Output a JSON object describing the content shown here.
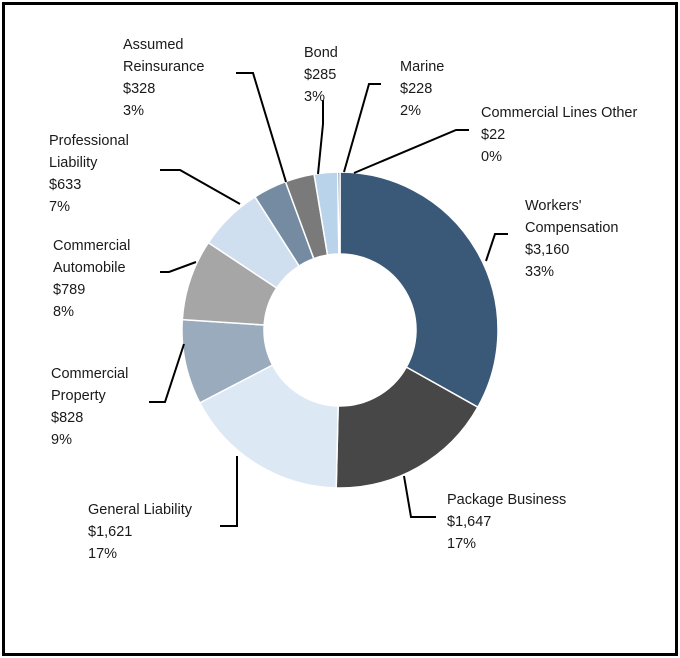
{
  "chart_data": {
    "type": "pie",
    "title": "",
    "series": [
      {
        "values": [
          3160,
          1647,
          1621,
          828,
          789,
          633,
          328,
          285,
          228,
          22
        ],
        "categories": [
          "Workers' Compensation",
          "Package Business",
          "General Liability",
          "Commercial Property",
          "Commercial Automobile",
          "Professional Liability",
          "Assumed Reinsurance",
          "Bond",
          "Marine",
          "Commercial Lines Other"
        ]
      }
    ],
    "slices": [
      {
        "label_lines": [
          "Workers'",
          "Compensation"
        ],
        "value_text": "$3,160",
        "pct_text": "33%",
        "value": 3160,
        "color": "#3a5878"
      },
      {
        "label_lines": [
          "Package Business"
        ],
        "value_text": "$1,647",
        "pct_text": "17%",
        "value": 1647,
        "color": "#474747"
      },
      {
        "label_lines": [
          "General Liability"
        ],
        "value_text": "$1,621",
        "pct_text": "17%",
        "value": 1621,
        "color": "#dce8f4"
      },
      {
        "label_lines": [
          "Commercial",
          "Property"
        ],
        "value_text": "$828",
        "pct_text": "9%",
        "value": 828,
        "color": "#9aabbd"
      },
      {
        "label_lines": [
          "Commercial",
          "Automobile"
        ],
        "value_text": "$789",
        "pct_text": "8%",
        "value": 789,
        "color": "#a6a6a6"
      },
      {
        "label_lines": [
          "Professional",
          "Liability"
        ],
        "value_text": "$633",
        "pct_text": "7%",
        "value": 633,
        "color": "#cfdff0"
      },
      {
        "label_lines": [
          "Assumed",
          "Reinsurance"
        ],
        "value_text": "$328",
        "pct_text": "3%",
        "value": 328,
        "color": "#748ba2"
      },
      {
        "label_lines": [
          "Bond"
        ],
        "value_text": "$285",
        "pct_text": "3%",
        "value": 285,
        "color": "#7a7a7a"
      },
      {
        "label_lines": [
          "Marine"
        ],
        "value_text": "$228",
        "pct_text": "2%",
        "value": 228,
        "color": "#b9d3ea"
      },
      {
        "label_lines": [
          "Commercial Lines Other"
        ],
        "value_text": "$22",
        "pct_text": "0%",
        "value": 22,
        "color": "#5a7896"
      }
    ],
    "legend": "none"
  }
}
